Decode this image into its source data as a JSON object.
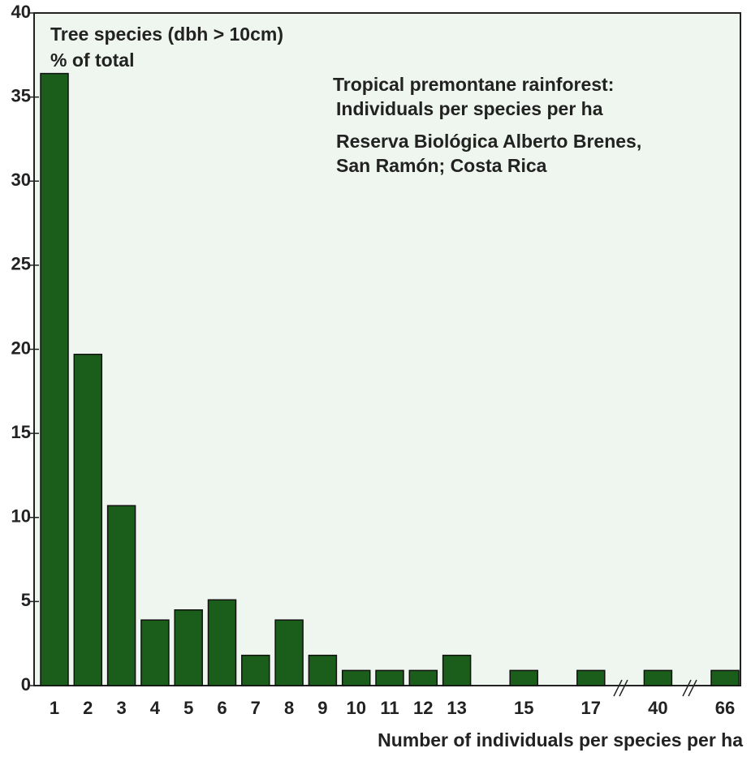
{
  "chart_data": {
    "type": "bar",
    "title": "Tree species (dbh > 10cm)",
    "ylabel": "% of total",
    "xlabel": "Number of individuals per species per ha",
    "annotations": [
      "Tropical premontane rainforest:",
      "Individuals per species per ha",
      "Reserva Biológica Alberto Brenes,",
      "San Ramón; Costa Rica"
    ],
    "categories": [
      "1",
      "2",
      "3",
      "4",
      "5",
      "6",
      "7",
      "8",
      "9",
      "10",
      "11",
      "12",
      "13",
      null,
      "15",
      null,
      "17",
      null,
      "40",
      null,
      "66"
    ],
    "values": [
      36.4,
      19.7,
      10.7,
      3.9,
      4.5,
      5.1,
      1.8,
      3.9,
      1.8,
      0.9,
      0.9,
      0.9,
      1.8,
      null,
      0.9,
      null,
      0.9,
      null,
      0.9,
      null,
      0.9
    ],
    "color": "#1b5e1b",
    "ylim": [
      0,
      40
    ],
    "yticks": [
      0,
      5,
      10,
      15,
      20,
      25,
      30,
      35,
      40
    ]
  }
}
